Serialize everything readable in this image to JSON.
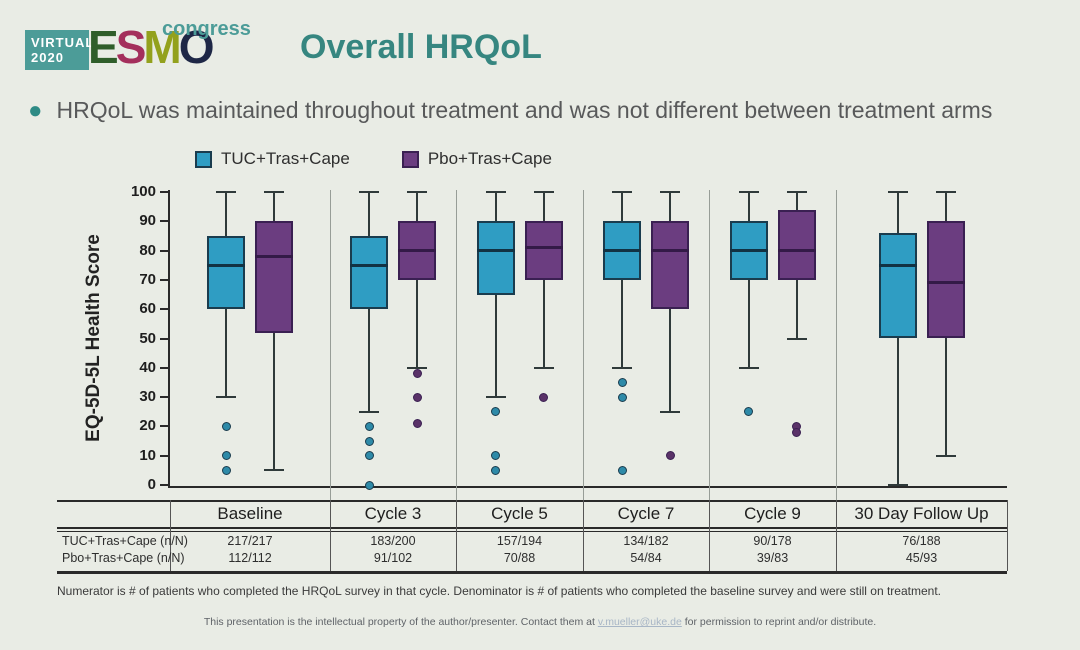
{
  "logo": {
    "virtual_line1": "VIRTUAL",
    "virtual_line2": "2020",
    "esmo_letters": [
      {
        "ch": "E",
        "color": "#2f5e2a"
      },
      {
        "ch": "S",
        "color": "#a42f5c"
      },
      {
        "ch": "M",
        "color": "#93a11d"
      },
      {
        "ch": "O",
        "color": "#1e2746"
      }
    ],
    "congress": "congress"
  },
  "header": {
    "title": "Overall HRQoL"
  },
  "bullet": {
    "text": "HRQoL was maintained throughout treatment and was not different between treatment arms"
  },
  "legend": [
    {
      "label": "TUC+Tras+Cape",
      "color": "#2f9dc3",
      "border": "#1a3c4e"
    },
    {
      "label": "Pbo+Tras+Cape",
      "color": "#6b3d80",
      "border": "#3a2052"
    }
  ],
  "chart_data": {
    "type": "boxplot",
    "ylabel": "EQ-5D-5L Health Score",
    "ylim": [
      0,
      100
    ],
    "yticks": [
      0,
      10,
      20,
      30,
      40,
      50,
      60,
      70,
      80,
      90,
      100
    ],
    "grid": false,
    "legend_position": "top",
    "categories": [
      "Baseline",
      "Cycle 3",
      "Cycle 5",
      "Cycle 7",
      "Cycle 9",
      "30 Day Follow Up"
    ],
    "series": [
      {
        "name": "TUC+Tras+Cape",
        "color": "#2f9dc3",
        "border": "#1a3c4e",
        "median_color": "#123243",
        "outlier_color": "#2e8aa8",
        "boxes": [
          {
            "whisker_low": 30,
            "q1": 60,
            "median": 75,
            "q3": 85,
            "whisker_high": 100,
            "outliers": [
              20,
              10,
              5
            ]
          },
          {
            "whisker_low": 25,
            "q1": 60,
            "median": 75,
            "q3": 85,
            "whisker_high": 100,
            "outliers": [
              20,
              15,
              10,
              0
            ]
          },
          {
            "whisker_low": 30,
            "q1": 65,
            "median": 80,
            "q3": 90,
            "whisker_high": 100,
            "outliers": [
              25,
              10,
              5
            ]
          },
          {
            "whisker_low": 40,
            "q1": 70,
            "median": 80,
            "q3": 90,
            "whisker_high": 100,
            "outliers": [
              35,
              30,
              5
            ]
          },
          {
            "whisker_low": 40,
            "q1": 70,
            "median": 80,
            "q3": 90,
            "whisker_high": 100,
            "outliers": [
              25
            ]
          },
          {
            "whisker_low": 0,
            "q1": 50,
            "median": 75,
            "q3": 86,
            "whisker_high": 100,
            "outliers": []
          }
        ]
      },
      {
        "name": "Pbo+Tras+Cape",
        "color": "#6b3d80",
        "border": "#3a2052",
        "median_color": "#331a47",
        "outlier_color": "#5a3268",
        "boxes": [
          {
            "whisker_low": 5,
            "q1": 52,
            "median": 78,
            "q3": 90,
            "whisker_high": 100,
            "outliers": []
          },
          {
            "whisker_low": 40,
            "q1": 70,
            "median": 80,
            "q3": 90,
            "whisker_high": 100,
            "outliers": [
              38,
              30,
              21
            ]
          },
          {
            "whisker_low": 40,
            "q1": 70,
            "median": 81,
            "q3": 90,
            "whisker_high": 100,
            "outliers": [
              30
            ]
          },
          {
            "whisker_low": 25,
            "q1": 60,
            "median": 80,
            "q3": 90,
            "whisker_high": 100,
            "outliers": [
              10
            ]
          },
          {
            "whisker_low": 50,
            "q1": 70,
            "median": 80,
            "q3": 94,
            "whisker_high": 100,
            "outliers": [
              20,
              18
            ]
          },
          {
            "whisker_low": 10,
            "q1": 50,
            "median": 69,
            "q3": 90,
            "whisker_high": 100,
            "outliers": []
          }
        ]
      }
    ]
  },
  "table": {
    "rows": [
      {
        "label": "TUC+Tras+Cape (n/N)",
        "values": [
          "217/217",
          "183/200",
          "157/194",
          "134/182",
          "90/178",
          "76/188"
        ]
      },
      {
        "label": "Pbo+Tras+Cape (n/N)",
        "values": [
          "112/112",
          "91/102",
          "70/88",
          "54/84",
          "39/83",
          "45/93"
        ]
      }
    ]
  },
  "footnote": "Numerator is # of patients who completed the HRQoL survey in that cycle. Denominator is # of patients who completed the baseline survey and were still on treatment.",
  "footer": {
    "pre": "This presentation is the intellectual property of the author/presenter. Contact them at ",
    "email": "v.mueller@uke.de",
    "post": " for permission to reprint and/or distribute."
  }
}
